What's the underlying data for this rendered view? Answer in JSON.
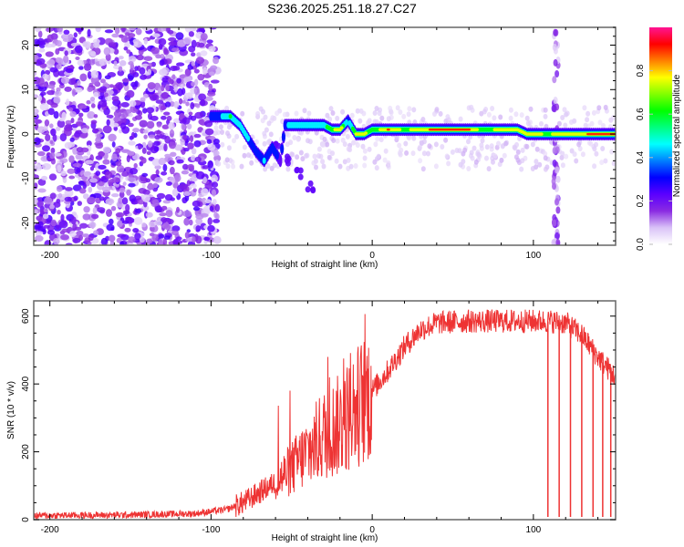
{
  "title": "S236.2025.251.18.27.C27",
  "chart_data": [
    {
      "type": "heatmap",
      "name": "spectrogram",
      "xlabel": "Height of straight line (km)",
      "ylabel": "Frequency (Hz)",
      "xlim": [
        -210,
        151
      ],
      "ylim": [
        -25,
        24
      ],
      "xticks": [
        -200,
        -100,
        0,
        100
      ],
      "xtick_labels": [
        "-200",
        "-100",
        "0",
        "100"
      ],
      "yticks": [
        -20,
        -10,
        0,
        10,
        20
      ],
      "ytick_labels": [
        "-20",
        "-10",
        "0",
        "10",
        "20"
      ],
      "colorbar": {
        "label": "Normalized spectral amplitude",
        "range": [
          0,
          1
        ],
        "ticks": [
          0.0,
          0.2,
          0.4,
          0.6,
          0.8
        ],
        "tick_labels": [
          "0.0",
          "0.2",
          "0.4",
          "0.6",
          "0.8"
        ],
        "colormap": [
          "#ffffff",
          "#d9c2f7",
          "#8a2be2",
          "#5a00ff",
          "#0000ff",
          "#0080ff",
          "#00ffff",
          "#00ff80",
          "#00ff00",
          "#80ff00",
          "#ffff00",
          "#ff8000",
          "#ff0000",
          "#ff1493"
        ]
      },
      "features": {
        "noise_region_km": [
          -210,
          -100
        ],
        "noise_amplitude": [
          0.05,
          0.25
        ],
        "signal_track": [
          {
            "x": -100,
            "y": 4,
            "amp": 0.4
          },
          {
            "x": -93,
            "y": 4,
            "amp": 0.45
          },
          {
            "x": -88,
            "y": 4,
            "amp": 0.6
          },
          {
            "x": -82,
            "y": 2,
            "amp": 0.45
          },
          {
            "x": -77,
            "y": -1,
            "amp": 0.45
          },
          {
            "x": -72,
            "y": -4,
            "amp": 0.4
          },
          {
            "x": -67,
            "y": -6,
            "amp": 0.45
          },
          {
            "x": -62,
            "y": -3,
            "amp": 0.35
          },
          {
            "x": -57,
            "y": -6,
            "amp": 0.3
          },
          {
            "x": -54,
            "y": 2,
            "amp": 0.4
          },
          {
            "x": -48,
            "y": 2,
            "amp": 0.55
          },
          {
            "x": -42,
            "y": 2,
            "amp": 0.5
          },
          {
            "x": -36,
            "y": 2,
            "amp": 0.5
          },
          {
            "x": -30,
            "y": 2,
            "amp": 0.55
          },
          {
            "x": -25,
            "y": 1,
            "amp": 0.7
          },
          {
            "x": -20,
            "y": 1,
            "amp": 0.85
          },
          {
            "x": -15,
            "y": 3,
            "amp": 0.4
          },
          {
            "x": -10,
            "y": 0,
            "amp": 0.75
          },
          {
            "x": -5,
            "y": 0,
            "amp": 0.8
          },
          {
            "x": 0,
            "y": 1,
            "amp": 0.6
          },
          {
            "x": 10,
            "y": 1,
            "amp": 0.9
          },
          {
            "x": 20,
            "y": 1,
            "amp": 0.7
          },
          {
            "x": 30,
            "y": 1,
            "amp": 0.85
          },
          {
            "x": 40,
            "y": 1,
            "amp": 0.95
          },
          {
            "x": 50,
            "y": 1,
            "amp": 0.95
          },
          {
            "x": 60,
            "y": 1,
            "amp": 0.9
          },
          {
            "x": 70,
            "y": 1,
            "amp": 0.6
          },
          {
            "x": 80,
            "y": 1,
            "amp": 0.85
          },
          {
            "x": 90,
            "y": 1,
            "amp": 0.85
          },
          {
            "x": 96,
            "y": 0,
            "amp": 0.85
          },
          {
            "x": 102,
            "y": 0,
            "amp": 0.8
          },
          {
            "x": 108,
            "y": 0,
            "amp": 0.7
          },
          {
            "x": 118,
            "y": 0,
            "amp": 0.85
          },
          {
            "x": 126,
            "y": 0,
            "amp": 0.8
          },
          {
            "x": 134,
            "y": 0,
            "amp": 0.9
          },
          {
            "x": 142,
            "y": 0,
            "amp": 0.9
          },
          {
            "x": 150,
            "y": 0,
            "amp": 0.9
          }
        ],
        "secondary_branch": [
          {
            "x": -60,
            "y": -2
          },
          {
            "x": -52,
            "y": -6
          },
          {
            "x": -45,
            "y": -9
          },
          {
            "x": -38,
            "y": -12
          }
        ],
        "vertical_stripe_km": 114
      }
    },
    {
      "type": "line",
      "name": "snr",
      "xlabel": "Height of straight line (km)",
      "ylabel": "SNR (10 * v/v)",
      "xlim": [
        -210,
        151
      ],
      "ylim": [
        0,
        645
      ],
      "xticks": [
        -200,
        -100,
        0,
        100
      ],
      "xtick_labels": [
        "-200",
        "-100",
        "0",
        "100"
      ],
      "yticks": [
        0,
        200,
        400,
        600
      ],
      "ytick_labels": [
        "0",
        "200",
        "400",
        "600"
      ],
      "color": "#ee3333",
      "envelope": {
        "x": [
          -210,
          -150,
          -110,
          -90,
          -80,
          -70,
          -60,
          -50,
          -40,
          -30,
          -20,
          -10,
          0,
          10,
          20,
          30,
          40,
          60,
          80,
          100,
          110,
          120,
          130,
          140,
          151
        ],
        "y": [
          12,
          14,
          18,
          30,
          50,
          80,
          110,
          150,
          200,
          250,
          280,
          330,
          380,
          440,
          510,
          560,
          580,
          585,
          585,
          585,
          585,
          580,
          545,
          480,
          420
        ]
      },
      "dropouts_km": [
        109,
        116,
        123,
        130,
        137,
        143,
        148
      ]
    }
  ]
}
